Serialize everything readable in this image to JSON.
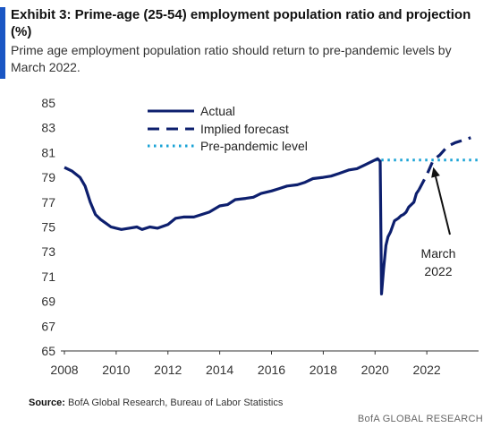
{
  "header": {
    "title": "Exhibit 3: Prime-age (25-54) employment population ratio and projection (%)",
    "subtitle": "Prime age employment population ratio should return to pre-pandemic levels by March 2022."
  },
  "footer": {
    "source_label": "Source:",
    "source_text": "BofA Global Research, Bureau of Labor Statistics",
    "brand": "BofA GLOBAL RESEARCH"
  },
  "colors": {
    "accent": "#1a56c4",
    "actual": "#0d1f6e",
    "forecast": "#0d1f6e",
    "prepandemic": "#1aa3d6",
    "annotation": "#111111"
  },
  "chart_data": {
    "type": "line",
    "title": "",
    "xlabel": "",
    "ylabel": "",
    "xlim": [
      2008,
      2024
    ],
    "ylim": [
      65,
      85
    ],
    "x_ticks": [
      "2008",
      "2010",
      "2012",
      "2014",
      "2016",
      "2018",
      "2020",
      "2022"
    ],
    "y_ticks": [
      "65",
      "67",
      "69",
      "71",
      "73",
      "75",
      "77",
      "79",
      "81",
      "83",
      "85"
    ],
    "grid": false,
    "legend_position": "top-center",
    "legend": [
      "Actual",
      "Implied forecast",
      "Pre-pandemic level"
    ],
    "series": [
      {
        "name": "Actual",
        "style": "solid",
        "x": [
          2008.0,
          2008.3,
          2008.6,
          2008.8,
          2009.0,
          2009.2,
          2009.4,
          2009.6,
          2009.8,
          2010.0,
          2010.2,
          2010.5,
          2010.8,
          2011.0,
          2011.3,
          2011.6,
          2012.0,
          2012.3,
          2012.6,
          2013.0,
          2013.3,
          2013.6,
          2014.0,
          2014.3,
          2014.6,
          2015.0,
          2015.3,
          2015.6,
          2016.0,
          2016.3,
          2016.6,
          2017.0,
          2017.3,
          2017.6,
          2018.0,
          2018.3,
          2018.6,
          2019.0,
          2019.3,
          2019.6,
          2019.9,
          2020.1,
          2020.2,
          2020.25,
          2020.33,
          2020.42,
          2020.5,
          2020.6,
          2020.75,
          2020.9,
          2021.0,
          2021.1,
          2021.2,
          2021.3,
          2021.4,
          2021.5,
          2021.6,
          2021.7
        ],
        "y": [
          79.8,
          79.5,
          79.0,
          78.3,
          77.0,
          76.0,
          75.6,
          75.3,
          75.0,
          74.9,
          74.8,
          74.9,
          75.0,
          74.8,
          75.0,
          74.9,
          75.2,
          75.7,
          75.8,
          75.8,
          76.0,
          76.2,
          76.7,
          76.8,
          77.2,
          77.3,
          77.4,
          77.7,
          77.9,
          78.1,
          78.3,
          78.4,
          78.6,
          78.9,
          79.0,
          79.1,
          79.3,
          79.6,
          79.7,
          80.0,
          80.3,
          80.5,
          80.3,
          69.6,
          71.6,
          73.5,
          74.2,
          74.6,
          75.5,
          75.7,
          75.9,
          76.0,
          76.2,
          76.6,
          76.8,
          77.0,
          77.7,
          78.0
        ]
      },
      {
        "name": "Implied forecast",
        "style": "dashed",
        "x": [
          2021.7,
          2022.0,
          2022.25,
          2022.5,
          2022.8,
          2023.1,
          2023.4,
          2023.7
        ],
        "y": [
          78.0,
          79.2,
          80.4,
          80.8,
          81.5,
          81.8,
          82.0,
          82.2
        ]
      },
      {
        "name": "Pre-pandemic level",
        "style": "dotted",
        "x": [
          2020.0,
          2024.0
        ],
        "y": [
          80.4,
          80.4
        ]
      }
    ],
    "annotations": [
      {
        "text_lines": [
          "March",
          "2022"
        ],
        "x": 2022.25,
        "y": 80.4
      }
    ]
  }
}
